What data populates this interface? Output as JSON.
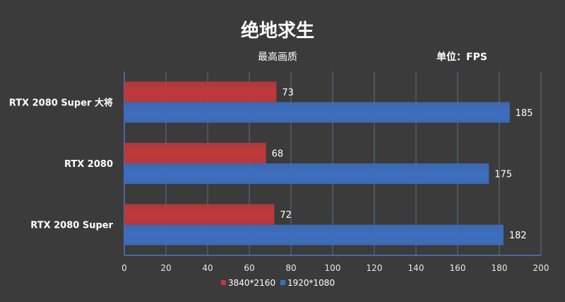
{
  "chart_data": {
    "type": "bar",
    "orientation": "horizontal",
    "title": "绝地求生",
    "subtitle": "最高画质",
    "unit_label": "单位：FPS",
    "categories": [
      "RTX 2080 Super 大将",
      "RTX 2080",
      "RTX 2080 Super"
    ],
    "series": [
      {
        "name": "3840*2160",
        "values": [
          73,
          68,
          72
        ],
        "color": "#c0393b"
      },
      {
        "name": "1920*1080",
        "values": [
          185,
          175,
          182
        ],
        "color": "#3d6fc0"
      }
    ],
    "xlim": [
      0,
      200
    ],
    "xticks": [
      0,
      20,
      40,
      60,
      80,
      100,
      120,
      140,
      160,
      180,
      200
    ],
    "grid": true,
    "legend_position": "bottom"
  },
  "colors": {
    "background": "#3b3b3b",
    "grid": "#5e6e8a",
    "axis": "#4f74c8"
  }
}
